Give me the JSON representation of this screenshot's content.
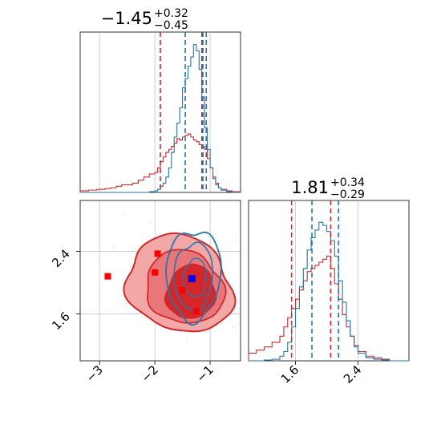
{
  "chart_data": {
    "type": "corner",
    "colors": {
      "blue": "#1f77b4",
      "red": "#d62728",
      "red_fill_light": "#f3a8a8",
      "red_fill_dark": "#d62728",
      "grid": "#b0b0b0"
    },
    "parameters": [
      {
        "title_value": "−1.45",
        "title_plus": "+0.32",
        "title_minus": "−0.45"
      },
      {
        "title_value": "1.81",
        "title_plus": "+0.34",
        "title_minus": "−0.29"
      }
    ],
    "x_range": [
      -3.35,
      -0.45
    ],
    "y_range": [
      1.0,
      3.05
    ],
    "x_ticks": [
      -3,
      -2,
      -1
    ],
    "x_tick_labels": [
      "−3",
      "−2",
      "−1"
    ],
    "y_ticks": [
      1.6,
      2.4
    ],
    "y_tick_labels": [
      "1.6",
      "2.4"
    ],
    "hist1_lines": {
      "blue": [
        -1.45,
        -1.13,
        -1.07
      ],
      "red": [
        -1.9,
        -1.15
      ]
    },
    "hist2_lines": {
      "blue": [
        1.81,
        2.15
      ],
      "red": [
        1.55,
        2.05
      ]
    },
    "hist1": {
      "bins": [
        -3.35,
        -3.2,
        -3.05,
        -2.9,
        -2.8,
        -2.7,
        -2.6,
        -2.5,
        -2.4,
        -2.3,
        -2.2,
        -2.1,
        -2.0,
        -1.95,
        -1.9,
        -1.85,
        -1.8,
        -1.75,
        -1.7,
        -1.65,
        -1.6,
        -1.55,
        -1.5,
        -1.45,
        -1.4,
        -1.35,
        -1.3,
        -1.25,
        -1.2,
        -1.15,
        -1.1,
        -1.05,
        -1.0,
        -0.95,
        -0.9,
        -0.85,
        -0.8,
        -0.7,
        -0.6,
        -0.45
      ],
      "blue": [
        0,
        0,
        0,
        0,
        0,
        0,
        0,
        0,
        0,
        0,
        0,
        0.5,
        1,
        2,
        4,
        6,
        10,
        16,
        26,
        36,
        45,
        55,
        68,
        74,
        82,
        88,
        96,
        92,
        80,
        62,
        42,
        28,
        16,
        9,
        5,
        3,
        1.5,
        0.5,
        0
      ],
      "red": [
        1,
        1.5,
        2,
        2.5,
        3,
        4,
        5,
        5,
        6,
        8,
        10,
        12,
        13,
        16,
        20,
        23,
        26,
        28,
        30,
        32,
        35,
        34,
        36,
        37,
        38,
        36,
        34,
        33,
        31,
        30,
        28,
        22,
        16,
        10,
        6,
        3,
        2,
        1,
        0.5
      ]
    },
    "hist2": {
      "bins": [
        1.0,
        1.1,
        1.2,
        1.3,
        1.4,
        1.45,
        1.5,
        1.55,
        1.6,
        1.65,
        1.7,
        1.75,
        1.8,
        1.85,
        1.9,
        1.95,
        2.0,
        2.05,
        2.1,
        2.15,
        2.2,
        2.25,
        2.3,
        2.35,
        2.4,
        2.5,
        2.6,
        2.7,
        2.8,
        3.05
      ],
      "blue": [
        0,
        0,
        0.5,
        1,
        3,
        6,
        12,
        22,
        34,
        48,
        60,
        72,
        80,
        85,
        90,
        88,
        84,
        78,
        68,
        52,
        38,
        26,
        16,
        9,
        5,
        2,
        1,
        0.5,
        0
      ],
      "red": [
        5,
        7,
        9,
        12,
        16,
        22,
        28,
        34,
        40,
        46,
        52,
        58,
        60,
        62,
        64,
        66,
        68,
        60,
        50,
        40,
        30,
        22,
        16,
        10,
        6,
        3,
        2,
        1,
        0
      ]
    },
    "red_markers": [
      {
        "x": -2.85,
        "y": 2.08
      },
      {
        "x": -2.0,
        "y": 2.13
      },
      {
        "x": -1.95,
        "y": 2.37
      },
      {
        "x": -1.5,
        "y": 1.9
      },
      {
        "x": -1.25,
        "y": 1.63
      }
    ],
    "blue_marker": {
      "x": -1.33,
      "y": 2.05
    }
  }
}
